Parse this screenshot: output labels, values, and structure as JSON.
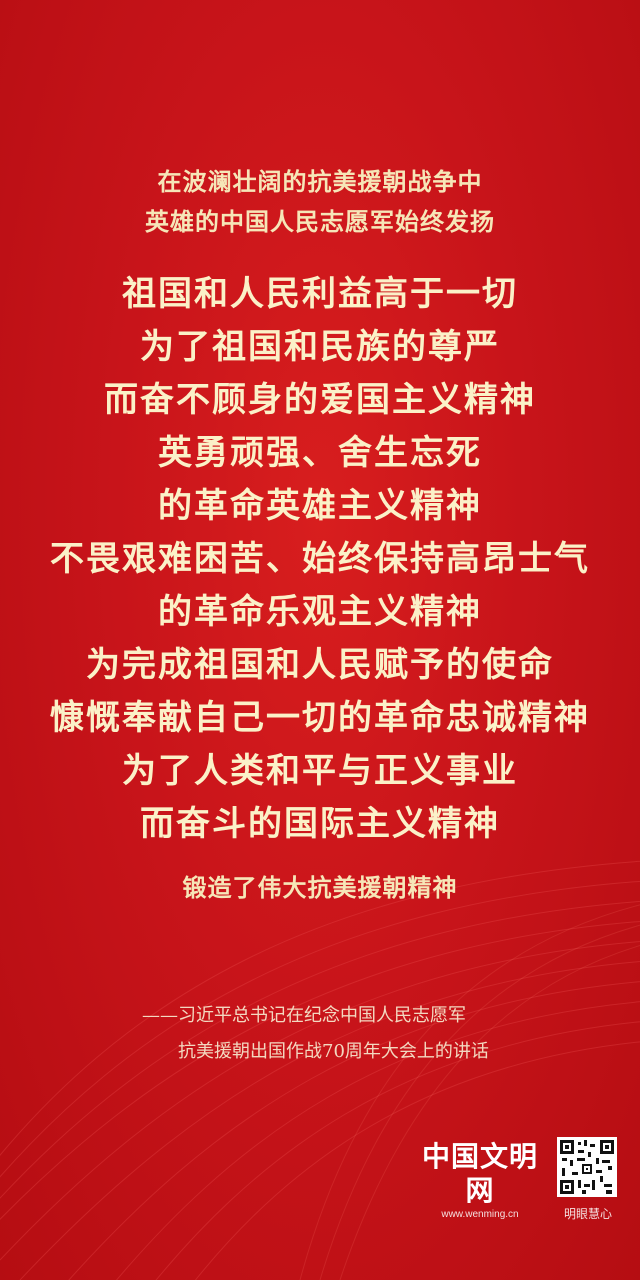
{
  "intro_lines": [
    "在波澜壮阔的抗美援朝战争中",
    "英雄的中国人民志愿军始终发扬"
  ],
  "main_lines": [
    "祖国和人民利益高于一切",
    "为了祖国和民族的尊严",
    "而奋不顾身的爱国主义精神",
    "英勇顽强、舍生忘死",
    "的革命英雄主义精神",
    "不畏艰难困苦、始终保持高昂士气",
    "的革命乐观主义精神",
    "为完成祖国和人民赋予的使命",
    "慷慨奉献自己一切的革命忠诚精神",
    "为了人类和平与正义事业",
    "而奋斗的国际主义精神"
  ],
  "closing_line": "锻造了伟大抗美援朝精神",
  "attribution": {
    "line1": "——习近平总书记在纪念中国人民志愿军",
    "line2": "抗美援朝出国作战70周年大会上的讲话"
  },
  "brand": {
    "name": "中国文明网",
    "url": "www.wenming.cn"
  },
  "qr_caption": "明眼慧心",
  "colors": {
    "background": "#c8141a",
    "text_gold": "#fbf1c8"
  }
}
